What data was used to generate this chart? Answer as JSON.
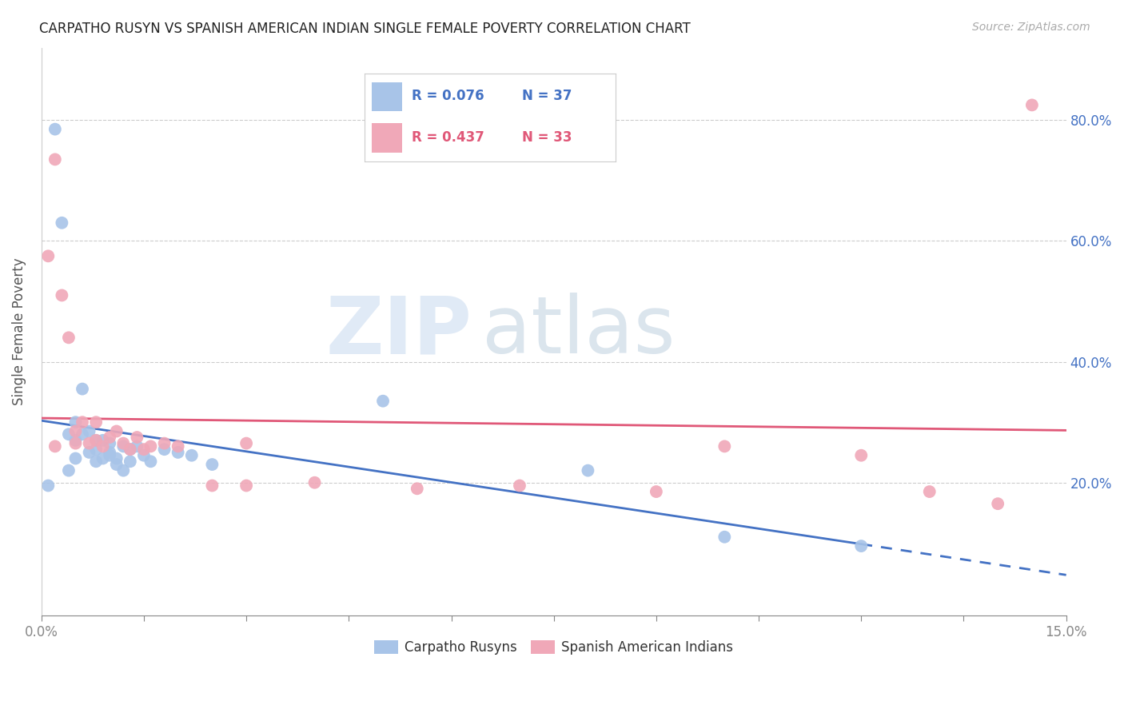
{
  "title": "CARPATHO RUSYN VS SPANISH AMERICAN INDIAN SINGLE FEMALE POVERTY CORRELATION CHART",
  "source": "Source: ZipAtlas.com",
  "ylabel": "Single Female Poverty",
  "xlim": [
    0.0,
    0.15
  ],
  "ylim": [
    -0.02,
    0.92
  ],
  "yticks": [
    0.2,
    0.4,
    0.6,
    0.8
  ],
  "ytick_labels": [
    "20.0%",
    "40.0%",
    "60.0%",
    "80.0%"
  ],
  "legend_r1": "R = 0.076",
  "legend_n1": "N = 37",
  "legend_r2": "R = 0.437",
  "legend_n2": "N = 33",
  "blue_color": "#a8c4e8",
  "pink_color": "#f0a8b8",
  "blue_line_color": "#4472C4",
  "pink_line_color": "#e05878",
  "watermark_zip": "ZIP",
  "watermark_atlas": "atlas",
  "carpatho_x": [
    0.001,
    0.002,
    0.003,
    0.004,
    0.004,
    0.005,
    0.005,
    0.005,
    0.006,
    0.006,
    0.007,
    0.007,
    0.008,
    0.008,
    0.008,
    0.009,
    0.009,
    0.01,
    0.01,
    0.01,
    0.011,
    0.011,
    0.012,
    0.012,
    0.013,
    0.013,
    0.014,
    0.015,
    0.016,
    0.018,
    0.02,
    0.022,
    0.025,
    0.05,
    0.08,
    0.1,
    0.12
  ],
  "carpatho_y": [
    0.195,
    0.785,
    0.63,
    0.22,
    0.28,
    0.24,
    0.3,
    0.27,
    0.355,
    0.28,
    0.285,
    0.25,
    0.27,
    0.255,
    0.235,
    0.27,
    0.24,
    0.265,
    0.25,
    0.245,
    0.24,
    0.23,
    0.26,
    0.22,
    0.255,
    0.235,
    0.26,
    0.245,
    0.235,
    0.255,
    0.25,
    0.245,
    0.23,
    0.335,
    0.22,
    0.11,
    0.095
  ],
  "spanish_x": [
    0.001,
    0.002,
    0.002,
    0.003,
    0.004,
    0.005,
    0.005,
    0.006,
    0.007,
    0.008,
    0.008,
    0.009,
    0.01,
    0.011,
    0.012,
    0.013,
    0.014,
    0.015,
    0.016,
    0.018,
    0.02,
    0.025,
    0.03,
    0.03,
    0.04,
    0.055,
    0.07,
    0.09,
    0.1,
    0.12,
    0.13,
    0.14,
    0.145
  ],
  "spanish_y": [
    0.575,
    0.735,
    0.26,
    0.51,
    0.44,
    0.285,
    0.265,
    0.3,
    0.265,
    0.3,
    0.27,
    0.26,
    0.275,
    0.285,
    0.265,
    0.255,
    0.275,
    0.255,
    0.26,
    0.265,
    0.26,
    0.195,
    0.265,
    0.195,
    0.2,
    0.19,
    0.195,
    0.185,
    0.26,
    0.245,
    0.185,
    0.165,
    0.825
  ]
}
